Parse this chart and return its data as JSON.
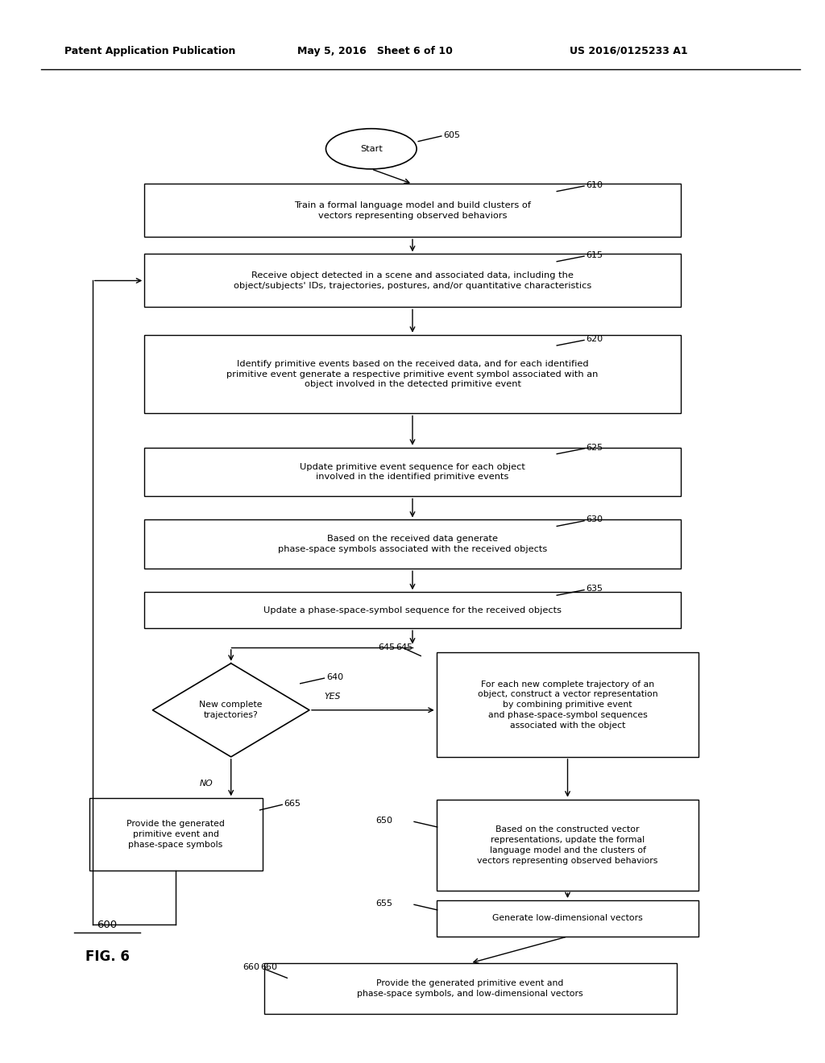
{
  "header_left": "Patent Application Publication",
  "header_mid": "May 5, 2016   Sheet 6 of 10",
  "header_right": "US 2016/0125233 A1",
  "fig_label": "FIG. 6",
  "fig_num": "600",
  "background": "#ffffff"
}
